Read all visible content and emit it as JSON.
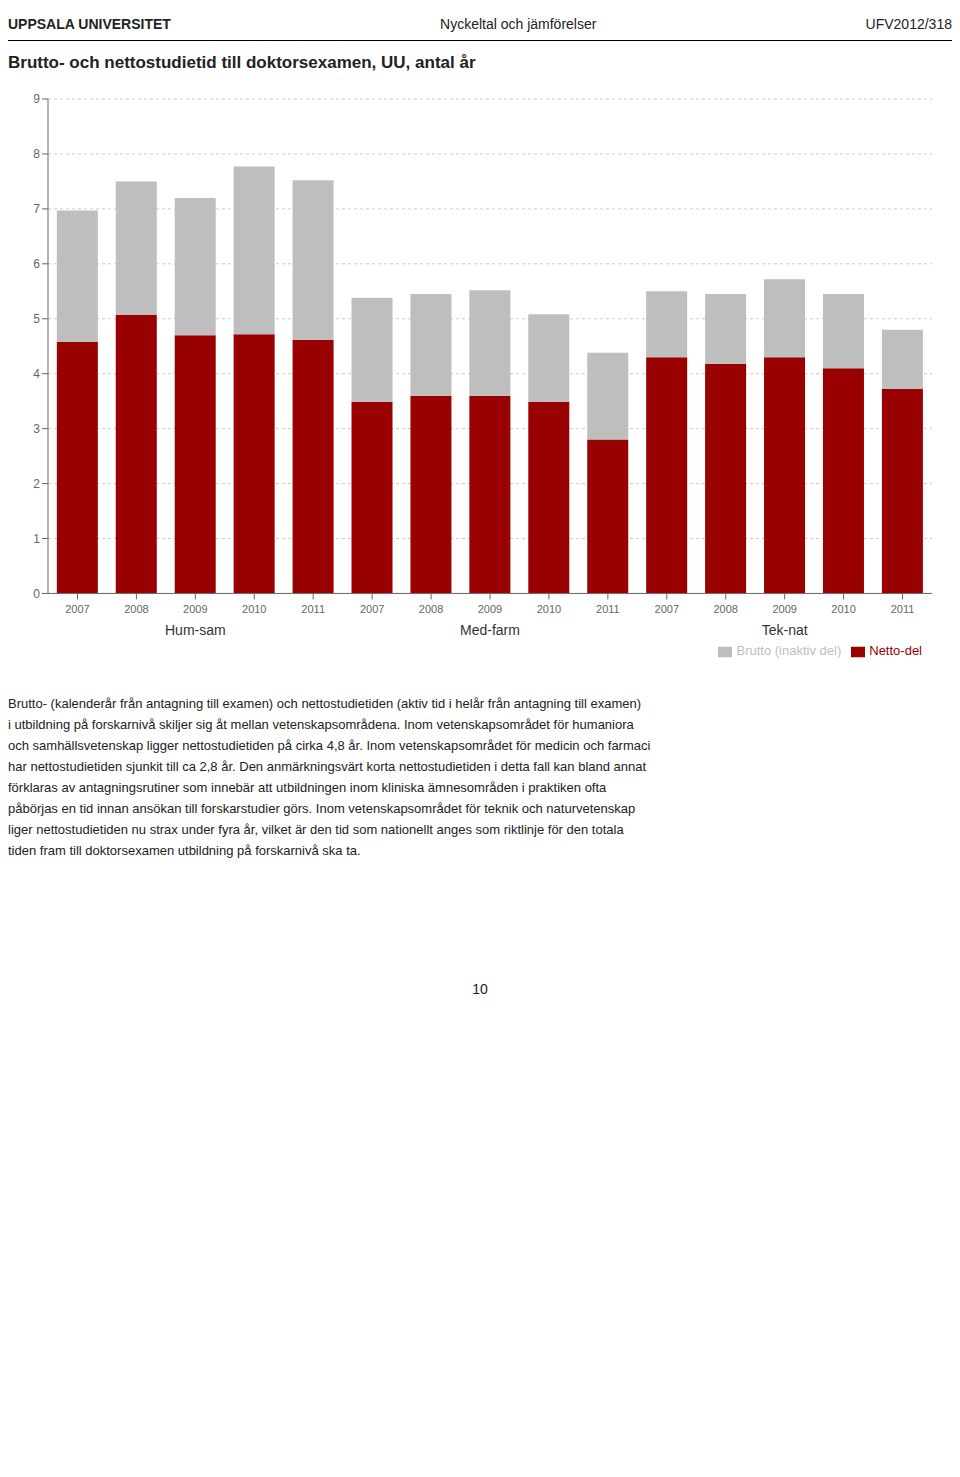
{
  "chart_data": {
    "type": "bar",
    "title": "Brutto- och nettostudietid till doktorsexamen, UU, antal år",
    "header": [
      "UPPSALA UNIVERSITET",
      "Nyckeltal och jämförelser",
      "UFV2012/318"
    ],
    "groups": [
      "Hum-sam",
      "Med-farm",
      "Tek-nat"
    ],
    "categories": [
      "2007",
      "2008",
      "2009",
      "2010",
      "2011",
      "2007",
      "2008",
      "2009",
      "2010",
      "2011",
      "2007",
      "2008",
      "2009",
      "2010",
      "2011"
    ],
    "series": [
      {
        "name": "Netto-del",
        "color": "#990000",
        "values": [
          4.58,
          5.07,
          4.7,
          4.72,
          4.62,
          3.49,
          3.6,
          3.6,
          3.49,
          2.8,
          4.3,
          4.18,
          4.3,
          4.1,
          3.72
        ]
      },
      {
        "name": "Brutto (inaktiv del)",
        "color": "#bebebe",
        "values": [
          2.39,
          2.43,
          2.5,
          3.05,
          2.9,
          1.89,
          1.85,
          1.92,
          1.59,
          1.58,
          1.2,
          1.27,
          1.42,
          1.35,
          1.08
        ]
      }
    ],
    "stacked": true,
    "ylim": [
      0,
      9
    ],
    "yticks": [
      0,
      1,
      2,
      3,
      4,
      5,
      6,
      7,
      8,
      9
    ],
    "grid": true,
    "legend": "lower right",
    "body_lines": [
      "Brutto- (kalenderår från antagning till examen) och nettostudietiden (aktiv tid i helår från antagning till examen)",
      "i utbildning på forskarnivå skiljer sig åt mellan vetenskapsområdena. Inom vetenskapsområdet för humaniora",
      "och samhällsvetenskap ligger nettostudietiden på cirka 4,8 år. Inom vetenskapsområdet för medicin och farmaci",
      "har nettostudietiden sjunkit till ca 2,8 år. Den anmärkningsvärt korta nettostudietiden i detta fall kan bland annat",
      "förklaras av antagningsrutiner som innebär att utbildningen inom kliniska ämnesområden i praktiken ofta",
      "påbörjas en tid innan ansökan till forskarstudier görs. Inom vetenskapsområdet för teknik och naturvetenskap",
      "liger nettostudietiden nu strax under fyra år, vilket är den tid som nationellt anges som riktlinje för den totala",
      "tiden fram till doktorsexamen utbildning på forskarnivå ska ta."
    ],
    "footer": "10"
  }
}
